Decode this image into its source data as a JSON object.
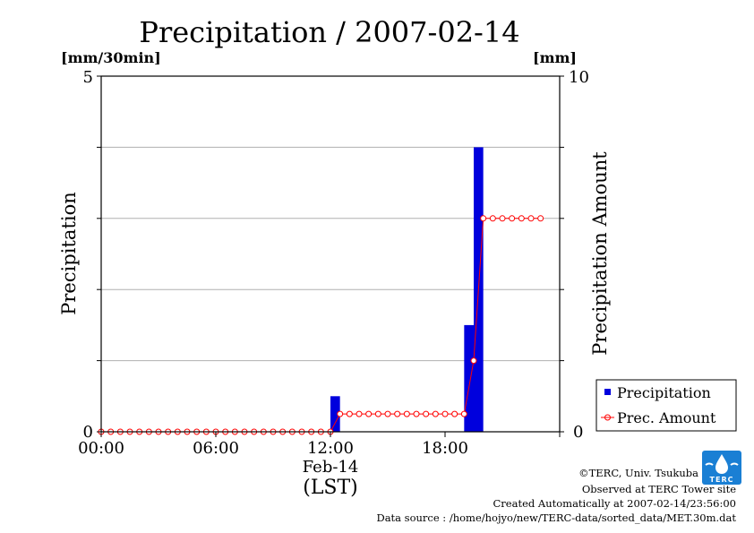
{
  "chart_data": {
    "type": "bar",
    "title": "Precipitation / 2007-02-14",
    "ylabel_left": "Precipitation",
    "ylabel_right": "Precipitation Amount",
    "unit_left": "[mm/30min]",
    "unit_right": "[mm]",
    "ylim_left": [
      0,
      5
    ],
    "ylim_right": [
      0,
      10
    ],
    "left_ticks": [
      "5",
      "0"
    ],
    "right_ticks": [
      "10",
      "0"
    ],
    "x_ticks": [
      "00:00",
      "06:00",
      "12:00",
      "18:00"
    ],
    "x_date": "Feb-14",
    "x_label": "(LST)",
    "grid": true,
    "legend_position": "right",
    "series": [
      {
        "name": "Precipitation",
        "type": "bar",
        "axis": "left",
        "color": "#0000dd",
        "points": [
          {
            "time": "12:00",
            "value": 0.5
          },
          {
            "time": "19:00",
            "value": 1.5
          },
          {
            "time": "19:30",
            "value": 4.0
          }
        ]
      },
      {
        "name": "Prec. Amount",
        "type": "line",
        "axis": "right",
        "color": "#ff0000",
        "times": [
          "00:00",
          "00:30",
          "01:00",
          "01:30",
          "02:00",
          "02:30",
          "03:00",
          "03:30",
          "04:00",
          "04:30",
          "05:00",
          "05:30",
          "06:00",
          "06:30",
          "07:00",
          "07:30",
          "08:00",
          "08:30",
          "09:00",
          "09:30",
          "10:00",
          "10:30",
          "11:00",
          "11:30",
          "12:00",
          "12:30",
          "13:00",
          "13:30",
          "14:00",
          "14:30",
          "15:00",
          "15:30",
          "16:00",
          "16:30",
          "17:00",
          "17:30",
          "18:00",
          "18:30",
          "19:00",
          "19:30",
          "20:00",
          "20:30",
          "21:00",
          "21:30",
          "22:00",
          "22:30",
          "23:00"
        ],
        "values": [
          0,
          0,
          0,
          0,
          0,
          0,
          0,
          0,
          0,
          0,
          0,
          0,
          0,
          0,
          0,
          0,
          0,
          0,
          0,
          0,
          0,
          0,
          0,
          0,
          0,
          0.5,
          0.5,
          0.5,
          0.5,
          0.5,
          0.5,
          0.5,
          0.5,
          0.5,
          0.5,
          0.5,
          0.5,
          0.5,
          0.5,
          2.0,
          6.0,
          6.0,
          6.0,
          6.0,
          6.0,
          6.0,
          6.0
        ]
      }
    ]
  },
  "footer": {
    "copyright": "©TERC, Univ. Tsukuba",
    "observed": "Observed at TERC Tower site",
    "created": "Created Automatically at 2007-02-14/23:56:00",
    "source": "Data source : /home/hojyo/new/TERC-data/sorted_data/MET.30m.dat"
  },
  "logo": {
    "text": "TERC",
    "color": "#1a7fd4"
  }
}
